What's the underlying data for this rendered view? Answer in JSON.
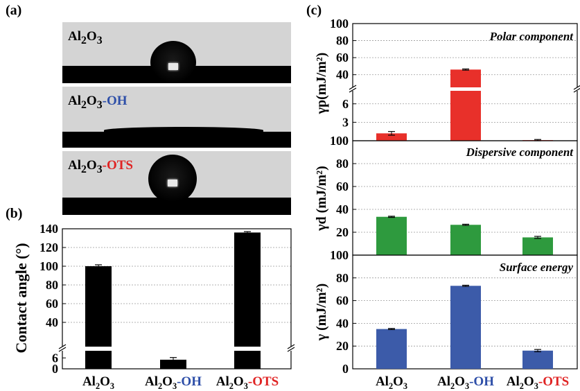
{
  "panel_labels": {
    "a": "(a)",
    "b": "(b)",
    "c": "(c)"
  },
  "photos": [
    {
      "prefix": "Al",
      "sub1": "2",
      "mid": "O",
      "sub2": "3",
      "suffix": "",
      "suffix_color": ""
    },
    {
      "prefix": "Al",
      "sub1": "2",
      "mid": "O",
      "sub2": "3",
      "suffix": "-OH",
      "suffix_color": "#2e4fa8"
    },
    {
      "prefix": "Al",
      "sub1": "2",
      "mid": "O",
      "sub2": "3",
      "suffix": "-OTS",
      "suffix_color": "#e02424"
    }
  ],
  "colors": {
    "red": "#e8302a",
    "green": "#2e9a3e",
    "blue": "#3c5ba9",
    "black": "#000000",
    "blue_text": "#2e4fa8",
    "red_text": "#e02424"
  },
  "categories": [
    {
      "base": "Al",
      "s1": "2",
      "m": "O",
      "s2": "3",
      "suffix": "",
      "color": "#000000"
    },
    {
      "base": "Al",
      "s1": "2",
      "m": "O",
      "s2": "3",
      "suffix": "-OH",
      "color": "#2e4fa8"
    },
    {
      "base": "Al",
      "s1": "2",
      "m": "O",
      "s2": "3",
      "suffix": "-OTS",
      "color": "#e02424"
    }
  ],
  "chart_data": [
    {
      "id": "b",
      "type": "bar",
      "ylabel": "Contact angle (°)",
      "values": [
        100,
        5,
        136
      ],
      "errors": [
        1.5,
        1.2,
        1.0
      ],
      "color": "#000000",
      "broken_axis": {
        "lower": [
          0,
          8
        ],
        "upper": [
          20,
          140
        ]
      },
      "ticks": [
        0,
        6,
        40,
        60,
        80,
        100,
        120,
        140
      ]
    },
    {
      "id": "c-polar",
      "type": "bar",
      "annotation": "Polar component",
      "ylabel": "γp(mJ/m²)",
      "values": [
        1.2,
        46,
        0.1
      ],
      "errors": [
        0.3,
        0.7,
        0.1
      ],
      "color": "#e8302a",
      "broken_axis": {
        "lower": [
          0,
          8
        ],
        "upper": [
          30,
          100
        ]
      },
      "ticks": [
        3,
        6,
        40,
        60,
        80,
        100
      ]
    },
    {
      "id": "c-dispersive",
      "type": "bar",
      "annotation": "Dispersive component",
      "ylabel": "γd (mJ/m²)",
      "values": [
        33.5,
        26.5,
        15.5
      ],
      "errors": [
        0.5,
        0.5,
        0.9
      ],
      "color": "#2e9a3e",
      "ylim": [
        0,
        100
      ],
      "ticks": [
        20,
        40,
        60,
        80,
        100
      ]
    },
    {
      "id": "c-surface",
      "type": "bar",
      "annotation": "Surface energy",
      "ylabel": "γ (mJ/m²)",
      "values": [
        35,
        73,
        16
      ],
      "errors": [
        0.5,
        0.5,
        1.0
      ],
      "color": "#3c5ba9",
      "ylim": [
        0,
        100
      ],
      "ticks": [
        0,
        20,
        40,
        60,
        80,
        100
      ]
    }
  ]
}
